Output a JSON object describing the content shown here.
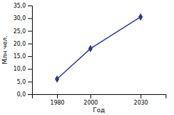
{
  "chart_data": {
    "type": "line",
    "x": [
      1980,
      2000,
      2030
    ],
    "values": [
      6.0,
      18.0,
      30.5
    ],
    "color": "#2b3990",
    "marker": "diamond",
    "line_style": "solid",
    "xlabel": "Год",
    "ylabel": "Млн чел.",
    "xlim": [
      1965,
      2045
    ],
    "ylim": [
      0.0,
      35.0
    ],
    "xticks": [
      1980,
      2000,
      2030
    ],
    "yticks": [
      {
        "value": 0.0,
        "label": "0,0"
      },
      {
        "value": 5.0,
        "label": "5,0"
      },
      {
        "value": 10.0,
        "label": "10,0"
      },
      {
        "value": 15.0,
        "label": "15,0"
      },
      {
        "value": 20.0,
        "label": "20,0"
      },
      {
        "value": 25.0,
        "label": "25,0"
      },
      {
        "value": 30.0,
        "label": "30,0"
      },
      {
        "value": 35.0,
        "label": "35,0"
      }
    ],
    "grid": false
  }
}
